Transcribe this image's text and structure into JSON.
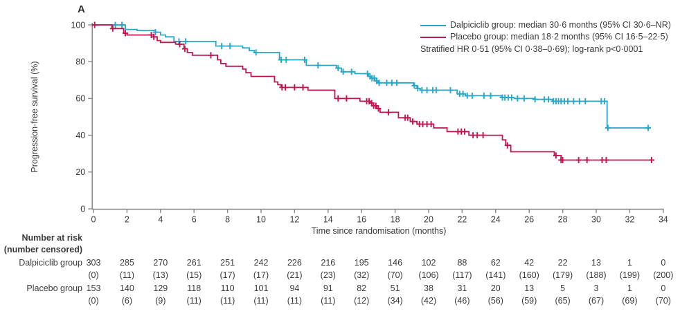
{
  "panel_label": "A",
  "colors": {
    "dalpiciclib": "#26A7C9",
    "placebo": "#C11350",
    "axis": "#8a8a8a",
    "text": "#3a3a3a"
  },
  "legend": {
    "entries": [
      {
        "label": "Dalpiciclib group: median 30·6 months (95% CI 30·6–NR)",
        "color": "#26A7C9"
      },
      {
        "label": "Placebo group: median 18·2 months (95% CI 16·5–22·5)",
        "color": "#C11350"
      }
    ],
    "note": "Stratified HR 0·51 (95% CI 0·38–0·69); log-rank p<0·0001"
  },
  "chart_data": {
    "type": "line",
    "subtype": "kaplan-meier-step",
    "title": "",
    "xlabel": "Time since randomisation (months)",
    "ylabel": "Progression-free survival (%)",
    "xlim": [
      0,
      34
    ],
    "ylim": [
      0,
      100
    ],
    "xticks": [
      0,
      2,
      4,
      6,
      8,
      10,
      12,
      14,
      16,
      18,
      20,
      22,
      24,
      26,
      28,
      30,
      32,
      34
    ],
    "yticks": [
      0,
      20,
      40,
      60,
      80,
      100
    ],
    "grid": false,
    "legend_position": "top-right",
    "series": [
      {
        "name": "Dalpiciclib group",
        "color": "#26A7C9",
        "median_months": "30·6",
        "ci": "30·6–NR",
        "points": [
          [
            0,
            100
          ],
          [
            1.9,
            97.5
          ],
          [
            2.6,
            97
          ],
          [
            3.7,
            96
          ],
          [
            4.0,
            94.5
          ],
          [
            4.3,
            93.5
          ],
          [
            4.8,
            91
          ],
          [
            7.3,
            88.5
          ],
          [
            8.9,
            87.5
          ],
          [
            9.3,
            86
          ],
          [
            9.6,
            85
          ],
          [
            11.1,
            81
          ],
          [
            12.7,
            78
          ],
          [
            14.5,
            76.5
          ],
          [
            14.8,
            74.5
          ],
          [
            15.6,
            73.5
          ],
          [
            16.4,
            72
          ],
          [
            16.6,
            71
          ],
          [
            16.8,
            69.5
          ],
          [
            17.0,
            68.5
          ],
          [
            19.1,
            67
          ],
          [
            19.3,
            65.5
          ],
          [
            19.5,
            64.5
          ],
          [
            21.7,
            62.5
          ],
          [
            22.2,
            61.5
          ],
          [
            24.35,
            60.5
          ],
          [
            25.1,
            60
          ],
          [
            26.3,
            59.5
          ],
          [
            27.4,
            58.5
          ],
          [
            30.65,
            44
          ],
          [
            33.1,
            44
          ]
        ],
        "censor_times": [
          1.3,
          1.7,
          3.7,
          5.1,
          5.5,
          7.65,
          8.15,
          9.7,
          11.2,
          11.5,
          12.6,
          13.4,
          14.6,
          14.9,
          15.4,
          16.35,
          16.5,
          16.62,
          16.75,
          16.9,
          17.05,
          17.5,
          17.8,
          18.1,
          19.15,
          19.35,
          19.6,
          19.9,
          20.25,
          20.45,
          21.3,
          21.85,
          22.05,
          22.3,
          22.6,
          23.3,
          23.7,
          24.4,
          24.55,
          24.75,
          24.95,
          25.3,
          25.7,
          26.35,
          26.9,
          27.15,
          27.45,
          27.6,
          27.75,
          27.9,
          28.1,
          28.3,
          28.65,
          29.0,
          29.35,
          30.3,
          30.5,
          30.7,
          33.1
        ]
      },
      {
        "name": "Placebo group",
        "color": "#C11350",
        "median_months": "18·2",
        "ci": "16·5–22·5",
        "points": [
          [
            0,
            100
          ],
          [
            1.1,
            98
          ],
          [
            1.8,
            95.5
          ],
          [
            2.0,
            94.5
          ],
          [
            3.6,
            93.5
          ],
          [
            3.8,
            91.5
          ],
          [
            4.0,
            90.5
          ],
          [
            4.9,
            89.5
          ],
          [
            5.4,
            87
          ],
          [
            5.6,
            85
          ],
          [
            5.9,
            83.5
          ],
          [
            7.4,
            81
          ],
          [
            7.6,
            79
          ],
          [
            7.9,
            77.5
          ],
          [
            8.9,
            76
          ],
          [
            9.1,
            74
          ],
          [
            9.4,
            72
          ],
          [
            10.8,
            69
          ],
          [
            11.0,
            67.5
          ],
          [
            11.2,
            66
          ],
          [
            12.8,
            64.5
          ],
          [
            14.4,
            60
          ],
          [
            15.9,
            58.5
          ],
          [
            16.5,
            57.5
          ],
          [
            16.7,
            56
          ],
          [
            16.9,
            54.5
          ],
          [
            17.1,
            52.5
          ],
          [
            18.2,
            49.5
          ],
          [
            18.9,
            47.5
          ],
          [
            19.3,
            46
          ],
          [
            20.3,
            44
          ],
          [
            21.1,
            42
          ],
          [
            22.4,
            40
          ],
          [
            24.4,
            37.5
          ],
          [
            24.6,
            34.5
          ],
          [
            24.9,
            31
          ],
          [
            27.5,
            29
          ],
          [
            27.9,
            26.5
          ],
          [
            33.3,
            26.5
          ]
        ],
        "censor_times": [
          0.07,
          1.15,
          1.9,
          3.45,
          3.6,
          5.15,
          5.45,
          7.0,
          11.25,
          11.45,
          12.0,
          12.5,
          14.6,
          15.1,
          16.3,
          16.45,
          16.6,
          16.72,
          16.85,
          17.0,
          17.6,
          18.6,
          18.75,
          19.05,
          19.45,
          19.65,
          19.9,
          20.15,
          21.75,
          21.95,
          22.15,
          22.65,
          22.9,
          23.25,
          24.7,
          27.6,
          27.9,
          28.0,
          28.95,
          29.45,
          30.35,
          30.6,
          33.3
        ]
      }
    ]
  },
  "risk_table": {
    "header": "Number at risk",
    "subheader": "(number censored)",
    "timepoints": [
      0,
      2,
      4,
      6,
      8,
      10,
      12,
      14,
      16,
      18,
      20,
      22,
      24,
      26,
      28,
      30,
      32,
      34
    ],
    "rows": [
      {
        "group": "Dalpiciclib group",
        "at_risk": [
          303,
          285,
          270,
          261,
          251,
          242,
          226,
          216,
          195,
          146,
          102,
          88,
          62,
          42,
          22,
          13,
          1,
          0
        ],
        "censored": [
          "(0)",
          "(11)",
          "(13)",
          "(15)",
          "(17)",
          "(17)",
          "(21)",
          "(23)",
          "(32)",
          "(70)",
          "(106)",
          "(117)",
          "(141)",
          "(160)",
          "(179)",
          "(188)",
          "(199)",
          "(200)"
        ]
      },
      {
        "group": "Placebo group",
        "at_risk": [
          153,
          140,
          129,
          118,
          110,
          101,
          94,
          91,
          82,
          51,
          38,
          31,
          20,
          13,
          5,
          3,
          1,
          0
        ],
        "censored": [
          "(0)",
          "(6)",
          "(9)",
          "(11)",
          "(11)",
          "(11)",
          "(11)",
          "(11)",
          "(12)",
          "(34)",
          "(42)",
          "(46)",
          "(56)",
          "(59)",
          "(65)",
          "(67)",
          "(69)",
          "(70)"
        ]
      }
    ]
  }
}
